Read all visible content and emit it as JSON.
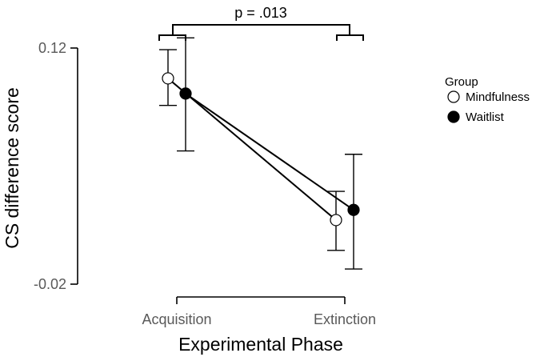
{
  "chart_data": {
    "type": "line",
    "title": "",
    "xlabel": "Experimental Phase",
    "ylabel": "CS difference score",
    "categories": [
      "Acquisition",
      "Extinction"
    ],
    "ylim": [
      -0.02,
      0.12
    ],
    "yticks": [
      "-0.02",
      "0.12"
    ],
    "grid": false,
    "legend": {
      "title": "Group",
      "position": "right"
    },
    "series": [
      {
        "name": "Mindfulness",
        "marker": "open-circle",
        "values": [
          0.102,
          0.018
        ],
        "error": [
          [
            0.086,
            0.119
          ],
          [
            0.0,
            0.035
          ]
        ]
      },
      {
        "name": "Waitlist",
        "marker": "filled-circle",
        "values": [
          0.093,
          0.024
        ],
        "error": [
          [
            0.059,
            0.126
          ],
          [
            -0.011,
            0.057
          ]
        ]
      }
    ],
    "annotations": [
      {
        "text": "p = .013",
        "type": "bracket",
        "between": [
          "Acquisition",
          "Extinction"
        ]
      }
    ],
    "colors": {
      "line": "#000000",
      "axis": "#000000",
      "tick_text": "#595959",
      "open_fill": "#ffffff",
      "filled_fill": "#000000"
    }
  }
}
